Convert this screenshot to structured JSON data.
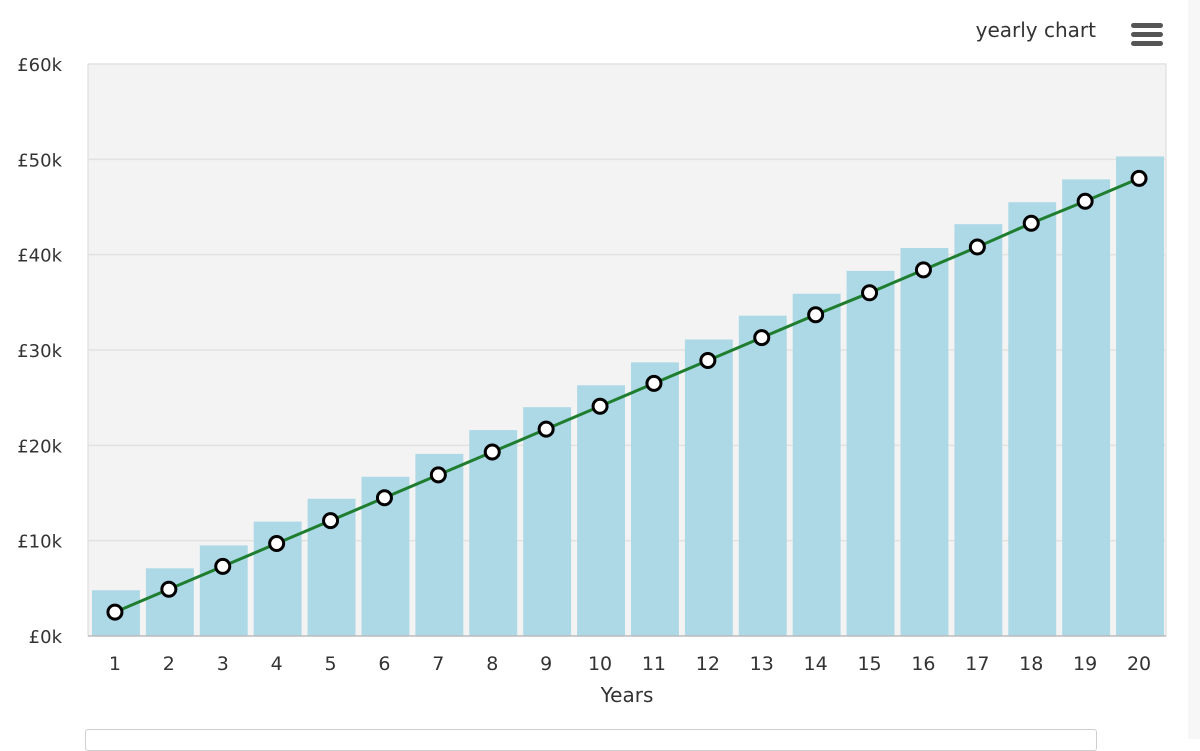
{
  "header": {
    "title": "yearly chart",
    "menu_icon": "hamburger-menu-icon"
  },
  "colors": {
    "plot_background": "#f3f3f3",
    "bar": "#add8e6",
    "line": "#1e7d2e",
    "marker_fill": "#ffffff",
    "marker_stroke": "#000000",
    "grid": "#e2e2e2"
  },
  "chart_data": {
    "type": "bar",
    "xlabel": "Years",
    "ylabel": "",
    "ylim": [
      0,
      60000
    ],
    "yticks": [
      0,
      10000,
      20000,
      30000,
      40000,
      50000,
      60000
    ],
    "ytick_labels": [
      "£0k",
      "£10k",
      "£20k",
      "£30k",
      "£40k",
      "£50k",
      "£60k"
    ],
    "grid": true,
    "legend": "none",
    "categories": [
      "1",
      "2",
      "3",
      "4",
      "5",
      "6",
      "7",
      "8",
      "9",
      "10",
      "11",
      "12",
      "13",
      "14",
      "15",
      "16",
      "17",
      "18",
      "19",
      "20"
    ],
    "series": [
      {
        "type": "bar",
        "values": [
          4800,
          7100,
          9500,
          12000,
          14400,
          16700,
          19100,
          21600,
          24000,
          26300,
          28700,
          31100,
          33600,
          35900,
          38300,
          40700,
          43200,
          45500,
          47900,
          50300
        ]
      },
      {
        "type": "line",
        "values": [
          2500,
          4900,
          7300,
          9700,
          12100,
          14500,
          16900,
          19300,
          21700,
          24100,
          26500,
          28900,
          31300,
          33700,
          36000,
          38400,
          40800,
          43300,
          45600,
          48000
        ]
      }
    ]
  }
}
